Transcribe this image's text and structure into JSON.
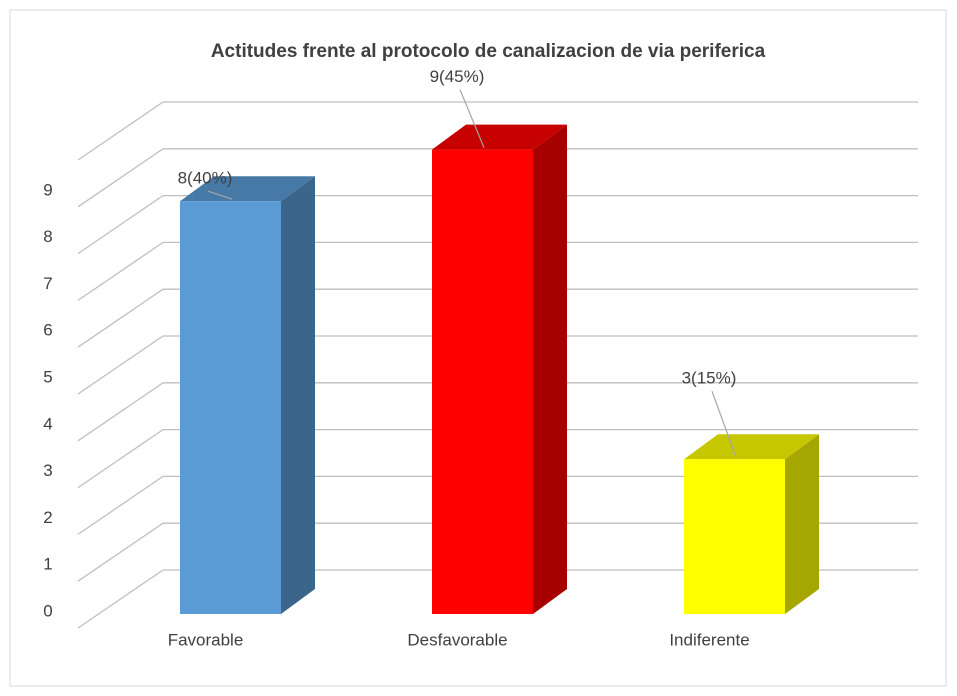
{
  "chart_data": {
    "type": "bar3d",
    "title": "Actitudes frente al protocolo de canalizacion de via periferica",
    "categories": [
      "Favorable",
      "Desfavorable",
      "Indiferente"
    ],
    "values": [
      8,
      9,
      3
    ],
    "value_labels": [
      "8(40%)",
      "9(45%)",
      "3(15%)"
    ],
    "colors": [
      "#5b9bd5",
      "#ff0000",
      "#ffff00"
    ],
    "ylim": [
      0,
      10
    ],
    "yticks": [
      0,
      1,
      2,
      3,
      4,
      5,
      6,
      7,
      8,
      9
    ],
    "grid": true
  }
}
